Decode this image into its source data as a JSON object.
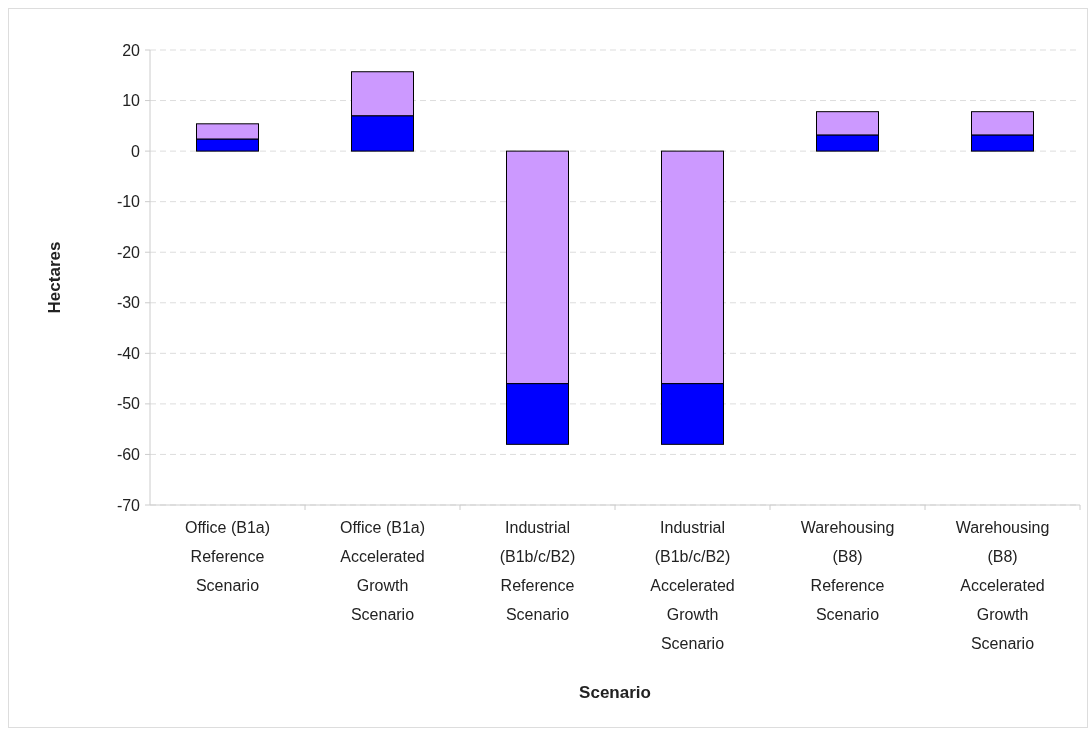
{
  "chart_data": {
    "type": "bar",
    "stacked": true,
    "xlabel": "Scenario",
    "ylabel": "Hectares",
    "categories": [
      "Office (B1a) Reference Scenario",
      "Office (B1a) Accelerated Growth Scenario",
      "Industrial (B1b/c/B2) Reference Scenario",
      "Industrial (B1b/c/B2) Accelerated Growth Scenario",
      "Warehousing (B8) Reference Scenario",
      "Warehousing (B8) Accelerated Growth Scenario"
    ],
    "series": [
      {
        "color": "#0000ff",
        "values": [
          2.4,
          7,
          null,
          null,
          3.2,
          3.2
        ]
      },
      {
        "color": "#cc99ff",
        "values": [
          3,
          8.7,
          -46,
          -46,
          4.6,
          4.6
        ]
      },
      {
        "color": "#0000ff",
        "values": [
          null,
          null,
          -12,
          -12,
          null,
          null
        ]
      }
    ],
    "ylim": [
      -70,
      20
    ],
    "yticks": [
      -70,
      -60,
      -50,
      -40,
      -30,
      -20,
      -10,
      0,
      10,
      20
    ],
    "grid": "y"
  }
}
